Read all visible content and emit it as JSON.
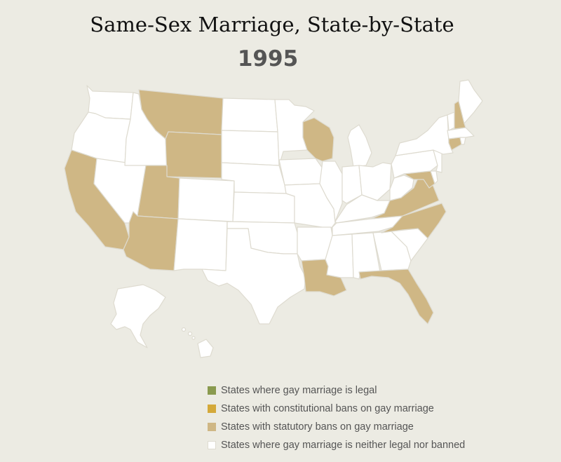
{
  "title": "Same-Sex Marriage, State-by-State",
  "year": "1995",
  "colors": {
    "background": "#ecebe3",
    "legal": "#8a9a4f",
    "constitutional_ban": "#d4a93a",
    "statutory_ban": "#cfb785",
    "neither": "#ffffff",
    "state_border": "#dedbd0"
  },
  "legend": [
    {
      "label": "States where gay marriage is legal",
      "status": "legal"
    },
    {
      "label": "States with constitutional bans on gay marriage",
      "status": "constitutional_ban"
    },
    {
      "label": "States with statutory bans on gay marriage",
      "status": "statutory_ban"
    },
    {
      "label": "States where gay marriage is neither legal nor banned",
      "status": "neither"
    }
  ],
  "states": [
    {
      "code": "WA",
      "status": "neither"
    },
    {
      "code": "OR",
      "status": "neither"
    },
    {
      "code": "CA",
      "status": "statutory_ban"
    },
    {
      "code": "NV",
      "status": "neither"
    },
    {
      "code": "ID",
      "status": "neither"
    },
    {
      "code": "MT",
      "status": "statutory_ban"
    },
    {
      "code": "WY",
      "status": "statutory_ban"
    },
    {
      "code": "UT",
      "status": "statutory_ban"
    },
    {
      "code": "AZ",
      "status": "statutory_ban"
    },
    {
      "code": "CO",
      "status": "neither"
    },
    {
      "code": "NM",
      "status": "neither"
    },
    {
      "code": "ND",
      "status": "neither"
    },
    {
      "code": "SD",
      "status": "neither"
    },
    {
      "code": "NE",
      "status": "neither"
    },
    {
      "code": "KS",
      "status": "neither"
    },
    {
      "code": "OK",
      "status": "neither"
    },
    {
      "code": "TX",
      "status": "neither"
    },
    {
      "code": "MN",
      "status": "neither"
    },
    {
      "code": "IA",
      "status": "neither"
    },
    {
      "code": "MO",
      "status": "neither"
    },
    {
      "code": "AR",
      "status": "neither"
    },
    {
      "code": "LA",
      "status": "statutory_ban"
    },
    {
      "code": "WI",
      "status": "statutory_ban"
    },
    {
      "code": "IL",
      "status": "neither"
    },
    {
      "code": "MI",
      "status": "neither"
    },
    {
      "code": "IN",
      "status": "neither"
    },
    {
      "code": "OH",
      "status": "neither"
    },
    {
      "code": "KY",
      "status": "neither"
    },
    {
      "code": "TN",
      "status": "neither"
    },
    {
      "code": "MS",
      "status": "neither"
    },
    {
      "code": "AL",
      "status": "neither"
    },
    {
      "code": "GA",
      "status": "neither"
    },
    {
      "code": "FL",
      "status": "statutory_ban"
    },
    {
      "code": "SC",
      "status": "neither"
    },
    {
      "code": "NC",
      "status": "statutory_ban"
    },
    {
      "code": "VA",
      "status": "statutory_ban"
    },
    {
      "code": "WV",
      "status": "neither"
    },
    {
      "code": "MD",
      "status": "statutory_ban"
    },
    {
      "code": "DE",
      "status": "neither"
    },
    {
      "code": "PA",
      "status": "neither"
    },
    {
      "code": "NJ",
      "status": "neither"
    },
    {
      "code": "NY",
      "status": "neither"
    },
    {
      "code": "CT",
      "status": "statutory_ban"
    },
    {
      "code": "RI",
      "status": "neither"
    },
    {
      "code": "MA",
      "status": "neither"
    },
    {
      "code": "VT",
      "status": "neither"
    },
    {
      "code": "NH",
      "status": "statutory_ban"
    },
    {
      "code": "ME",
      "status": "neither"
    },
    {
      "code": "AK",
      "status": "neither"
    },
    {
      "code": "HI",
      "status": "neither"
    }
  ]
}
